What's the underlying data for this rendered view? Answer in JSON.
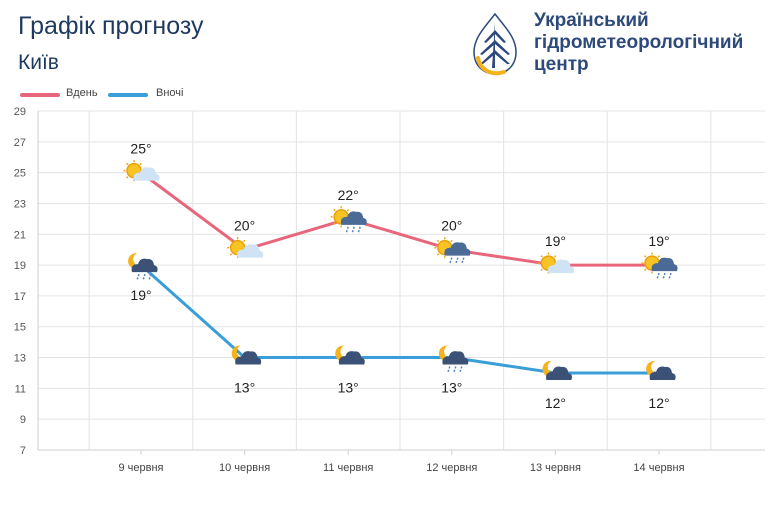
{
  "header": {
    "title": "Графік прогнозу",
    "city": "Київ",
    "org_lines": [
      "Український",
      "гідрометеорологічний",
      "центр"
    ]
  },
  "legend": {
    "day": "Вдень",
    "night": "Вночі"
  },
  "colors": {
    "day": "#e8667c",
    "night": "#3a9fd8",
    "sun": "#f5b21b",
    "cloud": "#3f5a80"
  },
  "chart_data": {
    "type": "line",
    "categories": [
      "9 червня",
      "10 червня",
      "11 червня",
      "12 червня",
      "13 червня",
      "14 червня"
    ],
    "series": [
      {
        "name": "Вдень",
        "values": [
          25,
          20,
          22,
          20,
          19,
          19
        ],
        "labels": [
          "25°",
          "20°",
          "22°",
          "20°",
          "19°",
          "19°"
        ],
        "icons": [
          "sun-cloud-icon",
          "sun-cloud-icon",
          "sun-rain-icon",
          "sun-rain-icon",
          "sun-cloud-icon",
          "sun-rain-icon"
        ]
      },
      {
        "name": "Вночі",
        "values": [
          19,
          13,
          13,
          13,
          12,
          12
        ],
        "labels": [
          "19°",
          "13°",
          "13°",
          "13°",
          "12°",
          "12°"
        ],
        "icons": [
          "moon-rain-icon",
          "moon-cloud-icon",
          "moon-cloud-icon",
          "moon-rain-icon",
          "moon-cloud-icon",
          "moon-cloud-icon"
        ]
      }
    ],
    "ylim": [
      7,
      29
    ],
    "yticks": [
      7,
      9,
      11,
      13,
      15,
      17,
      19,
      21,
      23,
      25,
      27,
      29
    ],
    "grid": true,
    "legend_position": "top-left"
  }
}
